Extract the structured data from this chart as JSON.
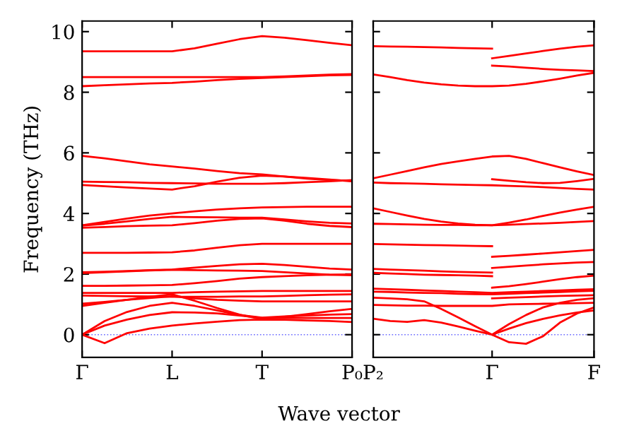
{
  "chart_data": [
    {
      "type": "line",
      "ylabel": "Frequency (THz)",
      "xlabel": "Wave vector",
      "ylim": [
        -0.75,
        10.35
      ],
      "categories": [
        "Γ",
        null,
        null,
        null,
        "L",
        null,
        null,
        null,
        "T",
        null,
        null,
        null,
        "P₀"
      ],
      "yticks": [
        0,
        2,
        4,
        6,
        8,
        10
      ],
      "grid": false,
      "marker": "none",
      "line_style": "solid",
      "ref_lines": [
        {
          "axis": "y",
          "value": 0,
          "color": "#6a6aff",
          "line_style": "dotted"
        }
      ],
      "series": [
        {
          "color": "#ff0000",
          "values": [
            9.35,
            9.35,
            9.35,
            9.35,
            9.35,
            9.45,
            9.6,
            9.75,
            9.85,
            9.8,
            9.72,
            9.63,
            9.55
          ]
        },
        {
          "color": "#ff0000",
          "values": [
            8.5,
            8.5,
            8.5,
            8.5,
            8.5,
            8.5,
            8.5,
            8.5,
            8.5,
            8.52,
            8.55,
            8.58,
            8.6
          ]
        },
        {
          "color": "#ff0000",
          "values": [
            8.2,
            8.23,
            8.26,
            8.29,
            8.31,
            8.35,
            8.4,
            8.44,
            8.47,
            8.5,
            8.53,
            8.56,
            8.57
          ]
        },
        {
          "color": "#ff0000",
          "values": [
            5.9,
            5.82,
            5.72,
            5.62,
            5.55,
            5.48,
            5.4,
            5.33,
            5.29,
            5.22,
            5.15,
            5.1,
            5.08
          ]
        },
        {
          "color": "#ff0000",
          "values": [
            5.05,
            5.04,
            5.03,
            5.01,
            5.0,
            4.99,
            4.98,
            4.98,
            4.98,
            5.0,
            5.03,
            5.06,
            5.1
          ]
        },
        {
          "color": "#ff0000",
          "values": [
            4.94,
            4.9,
            4.86,
            4.82,
            4.79,
            4.9,
            5.05,
            5.18,
            5.25,
            5.22,
            5.17,
            5.12,
            5.06
          ]
        },
        {
          "color": "#ff0000",
          "values": [
            3.61,
            3.72,
            3.83,
            3.93,
            4.0,
            4.07,
            4.13,
            4.17,
            4.2,
            4.21,
            4.22,
            4.22,
            4.22
          ]
        },
        {
          "color": "#ff0000",
          "values": [
            3.6,
            3.66,
            3.74,
            3.82,
            3.89,
            3.88,
            3.87,
            3.86,
            3.86,
            3.8,
            3.74,
            3.69,
            3.67
          ]
        },
        {
          "color": "#ff0000",
          "values": [
            3.53,
            3.55,
            3.58,
            3.6,
            3.61,
            3.68,
            3.76,
            3.82,
            3.84,
            3.76,
            3.66,
            3.59,
            3.55
          ]
        },
        {
          "color": "#ff0000",
          "values": [
            2.7,
            2.7,
            2.7,
            2.71,
            2.72,
            2.78,
            2.87,
            2.95,
            3.0,
            3.0,
            3.0,
            3.0,
            3.0
          ]
        },
        {
          "color": "#ff0000",
          "values": [
            2.06,
            2.08,
            2.1,
            2.13,
            2.15,
            2.21,
            2.27,
            2.32,
            2.34,
            2.3,
            2.24,
            2.18,
            2.15
          ]
        },
        {
          "color": "#ff0000",
          "values": [
            2.03,
            2.06,
            2.09,
            2.12,
            2.14,
            2.13,
            2.12,
            2.11,
            2.1,
            2.06,
            2.02,
            1.98,
            1.96
          ]
        },
        {
          "color": "#ff0000",
          "values": [
            1.61,
            1.61,
            1.62,
            1.63,
            1.64,
            1.7,
            1.77,
            1.85,
            1.9,
            1.93,
            1.96,
            1.98,
            1.99
          ]
        },
        {
          "color": "#ff0000",
          "values": [
            1.38,
            1.38,
            1.38,
            1.38,
            1.38,
            1.4,
            1.42,
            1.43,
            1.44,
            1.44,
            1.44,
            1.44,
            1.44
          ]
        },
        {
          "color": "#ff0000",
          "values": [
            1.29,
            1.28,
            1.27,
            1.26,
            1.25,
            1.25,
            1.25,
            1.26,
            1.26,
            1.28,
            1.3,
            1.32,
            1.33
          ]
        },
        {
          "color": "#ff0000",
          "values": [
            1.02,
            1.08,
            1.15,
            1.21,
            1.27,
            1.2,
            1.15,
            1.12,
            1.1,
            1.1,
            1.1,
            1.1,
            1.1
          ]
        },
        {
          "color": "#ff0000",
          "values": [
            0.95,
            1.05,
            1.15,
            1.25,
            1.33,
            1.12,
            0.88,
            0.66,
            0.51,
            0.59,
            0.68,
            0.77,
            0.85
          ]
        },
        {
          "color": "#ff0000",
          "values": [
            0,
            0.45,
            0.75,
            0.95,
            1.05,
            0.95,
            0.8,
            0.65,
            0.56,
            0.6,
            0.63,
            0.66,
            0.68
          ]
        },
        {
          "color": "#ff0000",
          "values": [
            0,
            0.3,
            0.5,
            0.65,
            0.74,
            0.73,
            0.7,
            0.63,
            0.55,
            0.55,
            0.55,
            0.55,
            0.55
          ]
        },
        {
          "color": "#ff0000",
          "values": [
            0,
            -0.28,
            0.05,
            0.2,
            0.3,
            0.37,
            0.43,
            0.48,
            0.5,
            0.49,
            0.47,
            0.45,
            0.42
          ]
        }
      ]
    },
    {
      "type": "line",
      "ylim": [
        -0.75,
        10.35
      ],
      "tick_labels": "x",
      "categories": [
        "P₂",
        null,
        null,
        null,
        null,
        null,
        null,
        "Γ",
        null,
        null,
        null,
        null,
        null,
        "F"
      ],
      "yticks": [
        0,
        2,
        4,
        6,
        8,
        10
      ],
      "grid": false,
      "marker": "none",
      "line_style": "solid",
      "ref_lines": [
        {
          "axis": "y",
          "value": 0,
          "color": "#6a6aff",
          "line_style": "dotted"
        }
      ],
      "series": [
        {
          "color": "#ff0000",
          "values": [
            9.52,
            9.51,
            9.5,
            9.49,
            9.48,
            9.46,
            9.45,
            9.44,
            null,
            null,
            null,
            null,
            null,
            null
          ]
        },
        {
          "color": "#ff0000",
          "values": [
            8.59,
            8.5,
            8.4,
            8.32,
            8.26,
            8.22,
            8.2,
            8.2,
            8.22,
            8.28,
            8.36,
            8.45,
            8.55,
            8.64
          ]
        },
        {
          "color": "#ff0000",
          "values": [
            5.16,
            5.28,
            5.4,
            5.52,
            5.63,
            5.72,
            5.8,
            5.88,
            5.9,
            5.8,
            5.66,
            5.52,
            5.39,
            5.27
          ]
        },
        {
          "color": "#ff0000",
          "values": [
            5.02,
            5.0,
            4.99,
            4.98,
            4.96,
            4.95,
            4.94,
            4.93,
            4.91,
            4.89,
            4.87,
            4.84,
            4.81,
            4.79
          ]
        },
        {
          "color": "#ff0000",
          "values": [
            4.17,
            4.05,
            3.93,
            3.82,
            3.73,
            3.67,
            3.63,
            3.61,
            3.63,
            3.65,
            3.67,
            3.69,
            3.72,
            3.75
          ]
        },
        {
          "color": "#ff0000",
          "values": [
            3.66,
            3.65,
            3.64,
            3.63,
            3.62,
            3.62,
            3.61,
            3.61,
            3.7,
            3.8,
            3.92,
            4.03,
            4.13,
            4.22
          ]
        },
        {
          "color": "#ff0000",
          "values": [
            2.99,
            2.98,
            2.97,
            2.96,
            2.95,
            2.94,
            2.93,
            2.92,
            null,
            null,
            null,
            null,
            null,
            null
          ]
        },
        {
          "color": "#ff0000",
          "values": [
            2.17,
            2.15,
            2.13,
            2.11,
            2.09,
            2.07,
            2.06,
            2.05,
            null,
            null,
            null,
            null,
            null,
            null
          ]
        },
        {
          "color": "#ff0000",
          "values": [
            2.04,
            2.02,
            2.0,
            1.98,
            1.97,
            1.96,
            1.95,
            1.93,
            null,
            null,
            null,
            null,
            null,
            null
          ]
        },
        {
          "color": "#ff0000",
          "values": [
            1.52,
            1.5,
            1.48,
            1.46,
            1.44,
            1.42,
            1.4,
            1.38,
            1.4,
            1.42,
            1.44,
            1.46,
            1.48,
            1.5
          ]
        },
        {
          "color": "#ff0000",
          "values": [
            1.42,
            1.41,
            1.39,
            1.38,
            1.37,
            1.35,
            1.34,
            1.33,
            1.35,
            1.37,
            1.39,
            1.41,
            1.43,
            1.45
          ]
        },
        {
          "color": "#ff0000",
          "values": [
            1.22,
            1.2,
            1.17,
            1.1,
            0.85,
            0.57,
            0.28,
            0,
            0.35,
            0.65,
            0.9,
            1.05,
            1.15,
            1.2
          ]
        },
        {
          "color": "#ff0000",
          "values": [
            0.98,
            0.97,
            0.96,
            0.96,
            0.95,
            0.95,
            0.95,
            0.95,
            1.0,
            1.01,
            1.02,
            1.03,
            1.04,
            1.05
          ]
        },
        {
          "color": "#ff0000",
          "values": [
            0.53,
            0.45,
            0.42,
            0.48,
            0.4,
            0.27,
            0.13,
            0,
            0.2,
            0.38,
            0.52,
            0.64,
            0.73,
            0.8
          ]
        },
        {
          "color": "#ff0000",
          "values": [
            null,
            null,
            null,
            null,
            null,
            null,
            null,
            0,
            -0.25,
            -0.3,
            -0.05,
            0.4,
            0.7,
            0.9
          ]
        },
        {
          "color": "#ff0000",
          "values": [
            null,
            null,
            null,
            null,
            null,
            null,
            null,
            9.12,
            9.2,
            9.28,
            9.36,
            9.44,
            9.5,
            9.55
          ]
        },
        {
          "color": "#ff0000",
          "values": [
            null,
            null,
            null,
            null,
            null,
            null,
            null,
            8.88,
            8.85,
            8.81,
            8.77,
            8.74,
            8.72,
            8.7
          ]
        },
        {
          "color": "#ff0000",
          "values": [
            null,
            null,
            null,
            null,
            null,
            null,
            null,
            5.13,
            5.08,
            5.03,
            5.0,
            5.01,
            5.07,
            5.14
          ]
        },
        {
          "color": "#ff0000",
          "values": [
            null,
            null,
            null,
            null,
            null,
            null,
            null,
            2.57,
            2.6,
            2.64,
            2.68,
            2.72,
            2.76,
            2.8
          ]
        },
        {
          "color": "#ff0000",
          "values": [
            null,
            null,
            null,
            null,
            null,
            null,
            null,
            2.2,
            2.24,
            2.28,
            2.32,
            2.35,
            2.38,
            2.4
          ]
        },
        {
          "color": "#ff0000",
          "values": [
            null,
            null,
            null,
            null,
            null,
            null,
            null,
            1.55,
            1.6,
            1.67,
            1.75,
            1.83,
            1.9,
            1.95
          ]
        },
        {
          "color": "#ff0000",
          "values": [
            null,
            null,
            null,
            null,
            null,
            null,
            null,
            1.2,
            1.22,
            1.24,
            1.26,
            1.28,
            1.29,
            1.3
          ]
        }
      ]
    }
  ]
}
